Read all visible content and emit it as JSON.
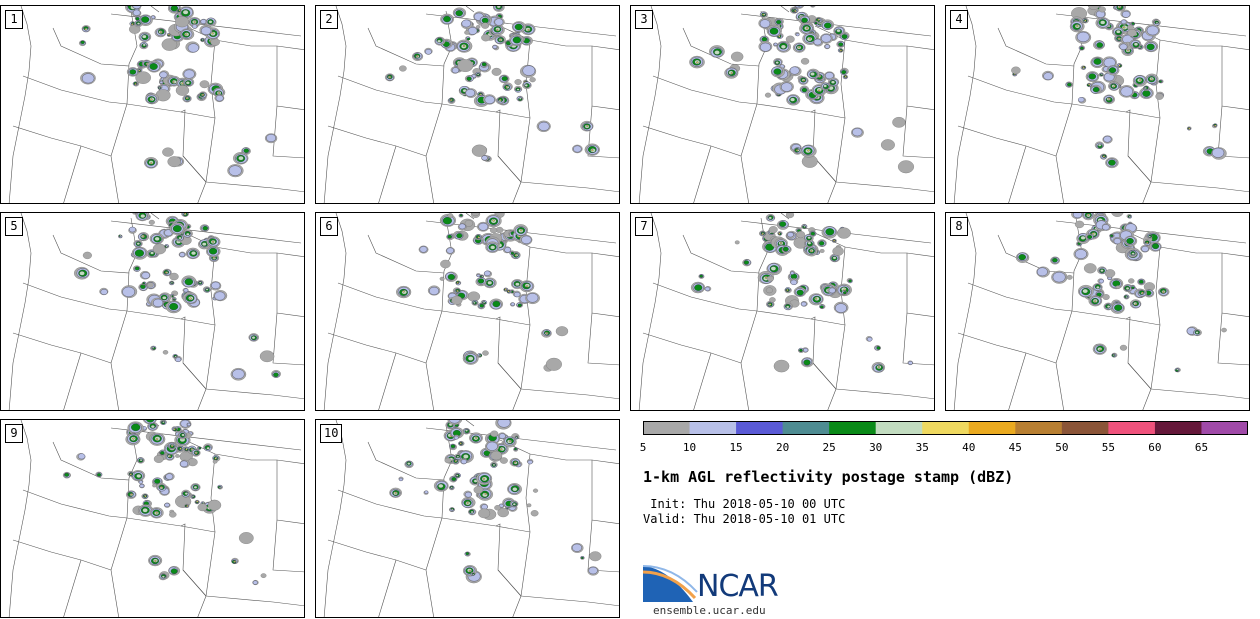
{
  "panels": [
    {
      "label": "1"
    },
    {
      "label": "2"
    },
    {
      "label": "3"
    },
    {
      "label": "4"
    },
    {
      "label": "5"
    },
    {
      "label": "6"
    },
    {
      "label": "7"
    },
    {
      "label": "8"
    },
    {
      "label": "9"
    },
    {
      "label": "10"
    }
  ],
  "colorbar": {
    "bounds": [
      5,
      10,
      15,
      20,
      25,
      30,
      35,
      40,
      45,
      50,
      55,
      60,
      65
    ],
    "colors": [
      "#a8a8a8",
      "#b8c0e8",
      "#5a5ad6",
      "#4e8c92",
      "#0a8a18",
      "#c2dcc0",
      "#efd960",
      "#eaaa20",
      "#b87f32",
      "#8b5538",
      "#ef527c",
      "#65183a",
      "#a04aa8"
    ],
    "labels": [
      "5",
      "10",
      "15",
      "20",
      "25",
      "30",
      "35",
      "40",
      "45",
      "50",
      "55",
      "60",
      "65"
    ]
  },
  "title": "1-km AGL reflectivity postage stamp (dBZ)",
  "init_line": " Init: Thu 2018-05-10 00 UTC",
  "valid_line": "Valid: Thu 2018-05-10 01 UTC",
  "logo": {
    "text": "NCAR",
    "url": "ensemble.ucar.edu"
  }
}
